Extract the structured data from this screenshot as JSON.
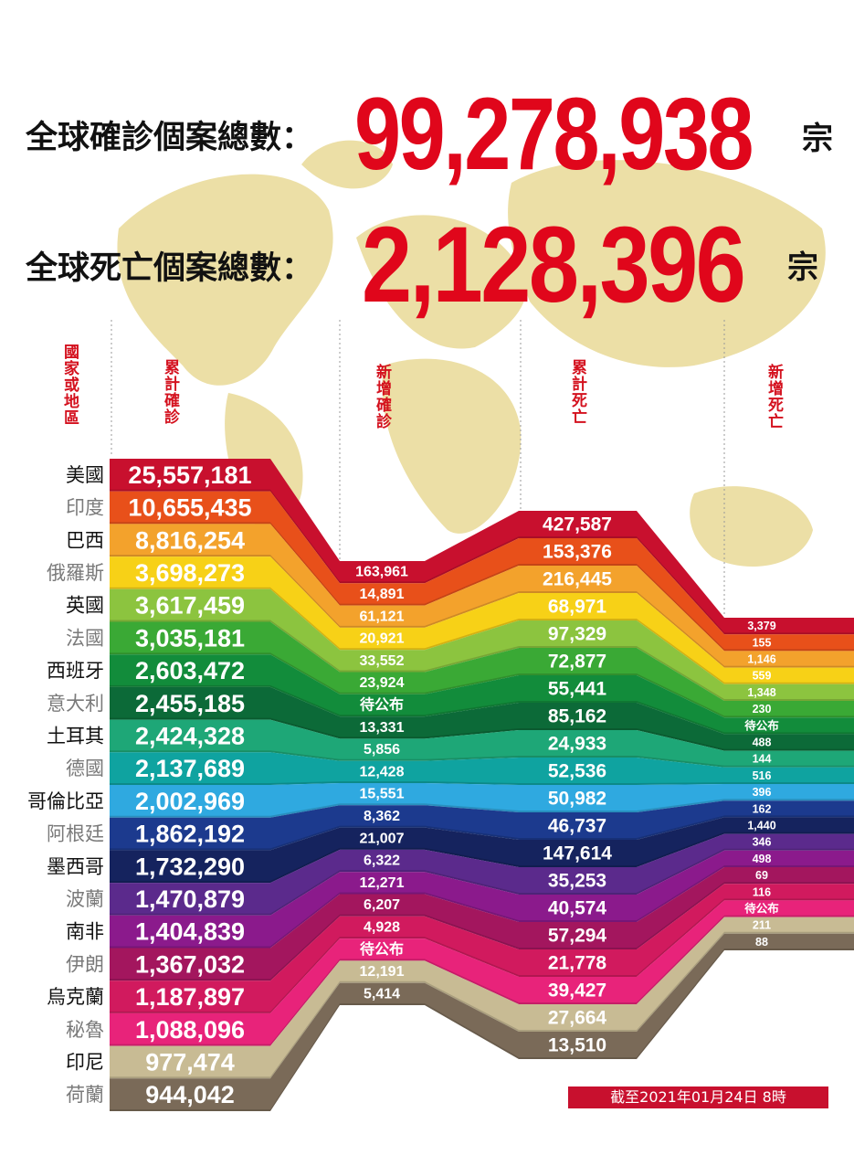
{
  "header": {
    "cases_label": "全球確診個案總數：",
    "cases_total": "99,278,938",
    "deaths_label": "全球死亡個案總數：",
    "deaths_total": "2,128,396",
    "unit": "宗"
  },
  "columns": [
    "國家或地區",
    "累計確診",
    "新增確診",
    "累計死亡",
    "新增死亡"
  ],
  "rows": [
    {
      "country": "美國",
      "cases": "25,557,181",
      "new_cases": "163,961",
      "deaths": "427,587",
      "new_deaths": "3,379",
      "color": "#c8102e"
    },
    {
      "country": "印度",
      "cases": "10,655,435",
      "new_cases": "14,891",
      "deaths": "153,376",
      "new_deaths": "155",
      "color": "#e8501a"
    },
    {
      "country": "巴西",
      "cases": "8,816,254",
      "new_cases": "61,121",
      "deaths": "216,445",
      "new_deaths": "1,146",
      "color": "#f3a22c"
    },
    {
      "country": "俄羅斯",
      "cases": "3,698,273",
      "new_cases": "20,921",
      "deaths": "68,971",
      "new_deaths": "559",
      "color": "#f7d117"
    },
    {
      "country": "英國",
      "cases": "3,617,459",
      "new_cases": "33,552",
      "deaths": "97,329",
      "new_deaths": "1,348",
      "color": "#8cc43f"
    },
    {
      "country": "法國",
      "cases": "3,035,181",
      "new_cases": "23,924",
      "deaths": "72,877",
      "new_deaths": "230",
      "color": "#3aa935"
    },
    {
      "country": "西班牙",
      "cases": "2,603,472",
      "new_cases": "待公布",
      "deaths": "55,441",
      "new_deaths": "待公布",
      "color": "#128c3b"
    },
    {
      "country": "意大利",
      "cases": "2,455,185",
      "new_cases": "13,331",
      "deaths": "85,162",
      "new_deaths": "488",
      "color": "#0c6a38"
    },
    {
      "country": "土耳其",
      "cases": "2,424,328",
      "new_cases": "5,856",
      "deaths": "24,933",
      "new_deaths": "144",
      "color": "#1ea777"
    },
    {
      "country": "德國",
      "cases": "2,137,689",
      "new_cases": "12,428",
      "deaths": "52,536",
      "new_deaths": "516",
      "color": "#0fa3a0"
    },
    {
      "country": "哥倫比亞",
      "cases": "2,002,969",
      "new_cases": "15,551",
      "deaths": "50,982",
      "new_deaths": "396",
      "color": "#2fa9e0"
    },
    {
      "country": "阿根廷",
      "cases": "1,862,192",
      "new_cases": "8,362",
      "deaths": "46,737",
      "new_deaths": "162",
      "color": "#1c3a8e"
    },
    {
      "country": "墨西哥",
      "cases": "1,732,290",
      "new_cases": "21,007",
      "deaths": "147,614",
      "new_deaths": "1,440",
      "color": "#15235e"
    },
    {
      "country": "波蘭",
      "cases": "1,470,879",
      "new_cases": "6,322",
      "deaths": "35,253",
      "new_deaths": "346",
      "color": "#5b2a8c"
    },
    {
      "country": "南非",
      "cases": "1,404,839",
      "new_cases": "12,271",
      "deaths": "40,574",
      "new_deaths": "498",
      "color": "#8b1a8c"
    },
    {
      "country": "伊朗",
      "cases": "1,367,032",
      "new_cases": "6,207",
      "deaths": "57,294",
      "new_deaths": "69",
      "color": "#a3165e"
    },
    {
      "country": "烏克蘭",
      "cases": "1,187,897",
      "new_cases": "4,928",
      "deaths": "21,778",
      "new_deaths": "116",
      "color": "#d11a5e"
    },
    {
      "country": "秘魯",
      "cases": "1,088,096",
      "new_cases": "待公布",
      "deaths": "39,427",
      "new_deaths": "待公布",
      "color": "#e8237a"
    },
    {
      "country": "印尼",
      "cases": "977,474",
      "new_cases": "12,191",
      "deaths": "27,664",
      "new_deaths": "211",
      "color": "#c8bb94"
    },
    {
      "country": "荷蘭",
      "cases": "944,042",
      "new_cases": "5,414",
      "deaths": "13,510",
      "new_deaths": "88",
      "color": "#7a6a58"
    }
  ],
  "footnote": "截至2021年01月24日 8時"
}
